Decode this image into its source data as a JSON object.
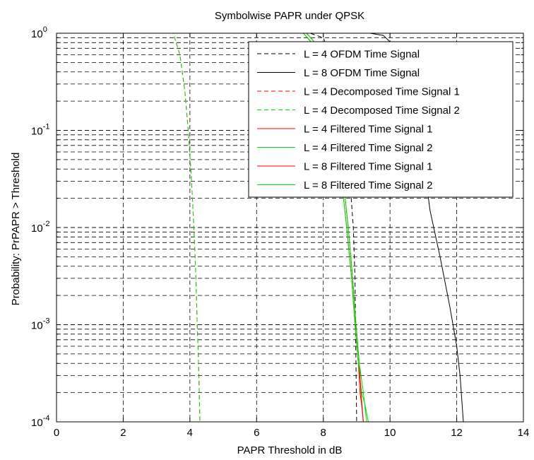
{
  "chart_data": {
    "type": "line",
    "title": "Symbolwise PAPR under QPSK",
    "xlabel": "PAPR Threshold in dB",
    "ylabel": "Probability: PrPAPR > Threshold",
    "xlim": [
      0,
      14
    ],
    "ylim": [
      0.0001,
      1
    ],
    "yscale": "log",
    "grid": true,
    "legend_position": "top-right",
    "x_ticks": [
      0,
      2,
      4,
      6,
      8,
      10,
      12,
      14
    ],
    "x_tick_labels": [
      "0",
      "2",
      "4",
      "6",
      "8",
      "10",
      "12",
      "14"
    ],
    "y_ticks": [
      0.0001,
      0.001,
      0.01,
      0.1,
      1
    ],
    "y_tick_labels": [
      {
        "base": "10",
        "exp": "-4"
      },
      {
        "base": "10",
        "exp": "-3"
      },
      {
        "base": "10",
        "exp": "-2"
      },
      {
        "base": "10",
        "exp": "-1"
      },
      {
        "base": "10",
        "exp": "0"
      }
    ],
    "series": [
      {
        "name": "L = 4 OFDM Time Signal",
        "color": "#000000",
        "dash": "dashed",
        "x": [
          0,
          7.6,
          8.0,
          8.3,
          8.5,
          8.65,
          8.8,
          8.9,
          8.95,
          9.0
        ],
        "y": [
          1,
          1,
          0.9,
          0.5,
          0.2,
          0.08,
          0.03,
          0.01,
          0.003,
          0.0001
        ]
      },
      {
        "name": "L = 8 OFDM Time Signal",
        "color": "#000000",
        "dash": "solid",
        "x": [
          0,
          9.4,
          9.8,
          10.2,
          10.5,
          10.8,
          11.0,
          11.2,
          11.5,
          11.8,
          12.0,
          12.1,
          12.2
        ],
        "y": [
          1,
          1,
          0.95,
          0.7,
          0.4,
          0.15,
          0.05,
          0.015,
          0.005,
          0.0015,
          0.0006,
          0.0003,
          0.0001
        ]
      },
      {
        "name": "L = 4 Decomposed Time Signal 1",
        "color": "#ff0000",
        "dash": "dashed",
        "x": [
          0,
          3.5,
          3.7,
          3.85,
          3.95,
          4.05,
          4.12,
          4.18,
          4.22,
          4.25,
          4.28,
          4.3
        ],
        "y": [
          1,
          1,
          0.6,
          0.25,
          0.1,
          0.03,
          0.01,
          0.003,
          0.001,
          0.0005,
          0.0002,
          0.0001
        ]
      },
      {
        "name": "L = 4 Decomposed Time Signal 2",
        "color": "#00dd00",
        "dash": "dashed",
        "x": [
          0,
          3.5,
          3.7,
          3.85,
          3.95,
          4.05,
          4.12,
          4.18,
          4.22,
          4.25,
          4.28,
          4.3
        ],
        "y": [
          1,
          1,
          0.6,
          0.25,
          0.1,
          0.03,
          0.01,
          0.003,
          0.001,
          0.0005,
          0.0002,
          0.0001
        ]
      },
      {
        "name": "L = 4 Filtered Time Signal 1",
        "color": "#ff0000",
        "dash": "solid",
        "x": [
          0,
          7.4,
          7.8,
          8.1,
          8.35,
          8.55,
          8.7,
          8.85,
          8.95,
          9.05,
          9.1,
          9.15,
          9.2
        ],
        "y": [
          1,
          1,
          0.7,
          0.3,
          0.1,
          0.03,
          0.01,
          0.003,
          0.001,
          0.0004,
          0.0002,
          0.00015,
          0.0001
        ]
      },
      {
        "name": "L = 4 Filtered Time Signal 2",
        "color": "#00dd00",
        "dash": "solid",
        "x": [
          0,
          7.4,
          7.8,
          8.1,
          8.35,
          8.55,
          8.7,
          8.85,
          8.95,
          9.05,
          9.15,
          9.25,
          9.35
        ],
        "y": [
          1,
          1,
          0.7,
          0.3,
          0.1,
          0.03,
          0.01,
          0.003,
          0.001,
          0.0004,
          0.0002,
          0.00015,
          0.0001
        ]
      },
      {
        "name": "L = 8 Filtered Time Signal 1",
        "color": "#ff0000",
        "dash": "solid",
        "x": [
          0,
          7.5,
          7.9,
          8.2,
          8.45,
          8.6,
          8.75,
          8.88,
          8.98,
          9.08,
          9.13,
          9.2
        ],
        "y": [
          1,
          1,
          0.7,
          0.3,
          0.1,
          0.03,
          0.01,
          0.003,
          0.001,
          0.0004,
          0.0002,
          0.0001
        ]
      },
      {
        "name": "L = 8 Filtered Time Signal 2",
        "color": "#00dd00",
        "dash": "solid",
        "x": [
          0,
          7.5,
          7.9,
          8.2,
          8.45,
          8.6,
          8.75,
          8.88,
          8.98,
          9.08,
          9.2,
          9.3
        ],
        "y": [
          1,
          1,
          0.7,
          0.3,
          0.1,
          0.03,
          0.01,
          0.003,
          0.001,
          0.0004,
          0.0002,
          0.0001
        ]
      }
    ]
  }
}
